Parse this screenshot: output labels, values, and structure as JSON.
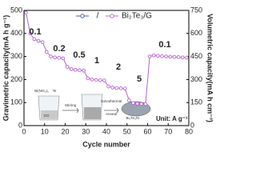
{
  "chart_data": {
    "type": "line",
    "x_label": "Cycle number",
    "y_label": "Gravimetric capacity(mA h g⁻¹)",
    "y2_label": "Volumetric capacity(mA h cm⁻³)",
    "legend": {
      "separator": "/",
      "label": "Bi₂Te₃/G"
    },
    "x": [
      1,
      3,
      5,
      7,
      9,
      11,
      13,
      15,
      17,
      19,
      21,
      23,
      25,
      27,
      29,
      31,
      33,
      35,
      37,
      39,
      41,
      43,
      45,
      47,
      49,
      51,
      53,
      55,
      57,
      59,
      61,
      63,
      65,
      67,
      69,
      71,
      73,
      75,
      77,
      79
    ],
    "series": [
      {
        "color": "#4b5d9e",
        "values": [
          490,
          400,
          375,
          368,
          362,
          320,
          300,
          296,
          294,
          292,
          255,
          245,
          242,
          240,
          239,
          205,
          200,
          198,
          197,
          196,
          170,
          165,
          163,
          162,
          161,
          110,
          98,
          95,
          94,
          93,
          300,
          305,
          303,
          301,
          300,
          299,
          298,
          297,
          296,
          295
        ]
      },
      {
        "color": "#c062d2",
        "axis": "y2",
        "values": [
          735,
          600,
          563,
          552,
          543,
          480,
          450,
          444,
          441,
          438,
          383,
          368,
          363,
          360,
          359,
          308,
          300,
          297,
          296,
          294,
          255,
          248,
          245,
          243,
          242,
          165,
          147,
          143,
          141,
          140,
          450,
          458,
          455,
          452,
          450,
          449,
          447,
          446,
          444,
          443
        ]
      }
    ],
    "xlim": [
      0,
      80
    ],
    "xticks": [
      0,
      10,
      20,
      30,
      40,
      50,
      60,
      70,
      80
    ],
    "ylim": [
      0,
      500
    ],
    "yticks": [
      0,
      100,
      200,
      300,
      400,
      500
    ],
    "y2lim": [
      0,
      750
    ],
    "y2ticks": [
      0,
      150,
      300,
      450,
      600,
      750
    ],
    "annotations": [
      "0.1",
      "0.2",
      "0.5",
      "1",
      "2",
      "5",
      "0.1"
    ],
    "unit_note": "Unit: A g⁻¹",
    "inset_labels": [
      "Bi(NO₃)₃",
      "Te",
      "GO",
      "Stirring",
      "Solvothermal",
      "Anneal",
      "Bi₂Te₃/G"
    ]
  }
}
